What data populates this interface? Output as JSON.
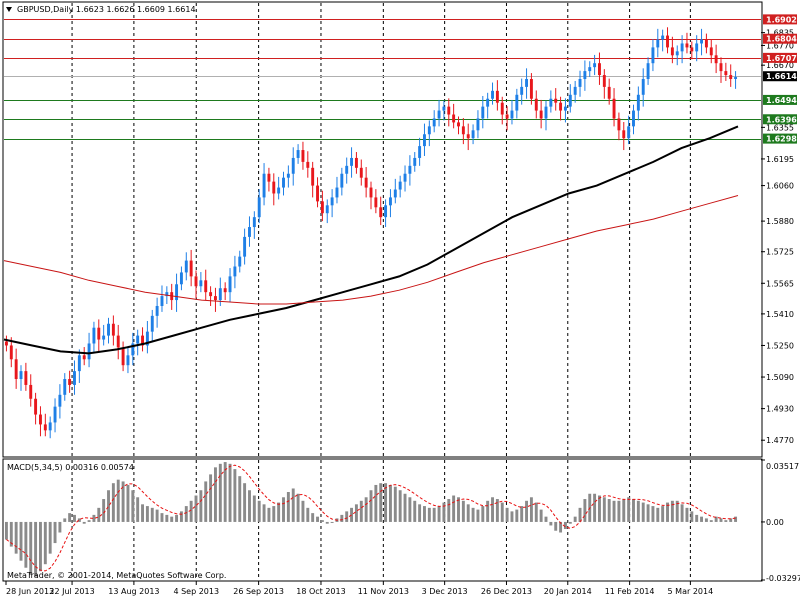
{
  "colors": {
    "background": "#ffffff",
    "bull": "#1e7fe6",
    "bear": "#e8171c",
    "ma_fast": "#000000",
    "ma_slow": "#c81414",
    "hline_resistance": "#d02020",
    "hline_support": "#1e7a1e",
    "hline_current": "#b0b0b0",
    "macd_hist": "#8a8a8a",
    "macd_signal": "#e81010"
  },
  "price_panel": {
    "header": "GBPUSD,Daily  1.6623 1.6626 1.6609 1.6614",
    "collapse_icon": "triangle-down-icon",
    "ylim": [
      1.469,
      1.6985
    ]
  },
  "macd_panel": {
    "header": "MACD(5,34,5) 0.00316 0.00574",
    "ylim": [
      -0.03297,
      0.03517
    ]
  },
  "copyright": "MetaTrader, © 2001-2014, MetaQuotes Software Corp.",
  "chart_data": [
    {
      "type": "candlestick",
      "symbol": "GBPUSD",
      "timeframe": "Daily",
      "y_ticks": [
        "1.6902",
        "1.6835",
        "1.6770",
        "1.6670",
        "1.6614",
        "1.6494",
        "1.6396",
        "1.6355",
        "1.6298",
        "1.6195",
        "1.6060",
        "1.5880",
        "1.5725",
        "1.5565",
        "1.5410",
        "1.5250",
        "1.5090",
        "1.4930",
        "1.4770"
      ],
      "x_ticks": [
        "28 Jun 2013",
        "22 Jul 2013",
        "13 Aug 2013",
        "4 Sep 2013",
        "26 Sep 2013",
        "18 Oct 2013",
        "11 Nov 2013",
        "3 Dec 2013",
        "26 Dec 2013",
        "20 Jan 2014",
        "11 Feb 2014",
        "5 Mar 2014"
      ],
      "horizontal_lines": [
        {
          "value": 1.6902,
          "label": "1.6902",
          "kind": "resistance"
        },
        {
          "value": 1.6804,
          "label": "1.6804",
          "kind": "resistance"
        },
        {
          "value": 1.6707,
          "label": "1.6707",
          "kind": "resistance"
        },
        {
          "value": 1.6614,
          "label": "1.6614",
          "kind": "current"
        },
        {
          "value": 1.6494,
          "label": "1.6494",
          "kind": "support"
        },
        {
          "value": 1.6396,
          "label": "1.6396",
          "kind": "support"
        },
        {
          "value": 1.6298,
          "label": "1.6298",
          "kind": "support"
        }
      ],
      "close_series": [
        1.525,
        1.518,
        1.508,
        1.512,
        1.505,
        1.498,
        1.49,
        1.485,
        1.482,
        1.486,
        1.494,
        1.5,
        1.508,
        1.505,
        1.512,
        1.52,
        1.518,
        1.526,
        1.534,
        1.528,
        1.53,
        1.536,
        1.53,
        1.524,
        1.515,
        1.52,
        1.526,
        1.53,
        1.525,
        1.532,
        1.54,
        1.545,
        1.55,
        1.552,
        1.548,
        1.556,
        1.562,
        1.568,
        1.56,
        1.555,
        1.558,
        1.552,
        1.55,
        1.548,
        1.554,
        1.552,
        1.56,
        1.565,
        1.57,
        1.58,
        1.585,
        1.59,
        1.6,
        1.612,
        1.608,
        1.602,
        1.605,
        1.61,
        1.612,
        1.62,
        1.624,
        1.618,
        1.615,
        1.606,
        1.598,
        1.592,
        1.596,
        1.6,
        1.605,
        1.612,
        1.616,
        1.62,
        1.615,
        1.61,
        1.605,
        1.6,
        1.595,
        1.59,
        1.596,
        1.6,
        1.604,
        1.608,
        1.612,
        1.616,
        1.62,
        1.626,
        1.632,
        1.636,
        1.64,
        1.644,
        1.646,
        1.642,
        1.638,
        1.636,
        1.632,
        1.63,
        1.634,
        1.64,
        1.646,
        1.65,
        1.654,
        1.648,
        1.642,
        1.64,
        1.644,
        1.652,
        1.656,
        1.66,
        1.65,
        1.644,
        1.64,
        1.646,
        1.65,
        1.648,
        1.644,
        1.646,
        1.652,
        1.656,
        1.66,
        1.664,
        1.666,
        1.668,
        1.662,
        1.656,
        1.65,
        1.64,
        1.634,
        1.63,
        1.636,
        1.644,
        1.652,
        1.66,
        1.668,
        1.676,
        1.68,
        1.682,
        1.676,
        1.672,
        1.674,
        1.678,
        1.676,
        1.674,
        1.678,
        1.68,
        1.676,
        1.672,
        1.668,
        1.664,
        1.662,
        1.66,
        1.661
      ],
      "series": [
        {
          "name": "Moving Average (fast)",
          "values": [
            1.528,
            1.525,
            1.522,
            1.521,
            1.523,
            1.526,
            1.53,
            1.534,
            1.538,
            1.541,
            1.544,
            1.548,
            1.552,
            1.556,
            1.56,
            1.566,
            1.574,
            1.582,
            1.59,
            1.596,
            1.602,
            1.606,
            1.612,
            1.618,
            1.625,
            1.63,
            1.636
          ]
        },
        {
          "name": "Moving Average (slow)",
          "values": [
            1.568,
            1.565,
            1.562,
            1.558,
            1.555,
            1.552,
            1.55,
            1.548,
            1.547,
            1.546,
            1.546,
            1.547,
            1.548,
            1.55,
            1.553,
            1.557,
            1.562,
            1.567,
            1.571,
            1.575,
            1.579,
            1.583,
            1.586,
            1.589,
            1.593,
            1.597,
            1.601
          ]
        }
      ]
    },
    {
      "type": "bar",
      "indicator": "MACD",
      "params": [
        5,
        34,
        5
      ],
      "values_label": [
        "0.00316",
        "0.00574"
      ],
      "y_ticks": [
        "0.03517",
        "0.00",
        "-0.03297"
      ],
      "histogram": [
        -0.01,
        -0.014,
        -0.018,
        -0.022,
        -0.026,
        -0.03,
        -0.031,
        -0.028,
        -0.024,
        -0.018,
        -0.012,
        -0.006,
        0.002,
        0.005,
        0.004,
        0.002,
        -0.001,
        0.001,
        0.004,
        0.008,
        0.013,
        0.018,
        0.022,
        0.024,
        0.023,
        0.021,
        0.018,
        0.014,
        0.01,
        0.009,
        0.008,
        0.007,
        0.005,
        0.004,
        0.003,
        0.004,
        0.006,
        0.009,
        0.012,
        0.015,
        0.018,
        0.023,
        0.027,
        0.031,
        0.033,
        0.034,
        0.033,
        0.03,
        0.026,
        0.022,
        0.018,
        0.015,
        0.012,
        0.01,
        0.008,
        0.009,
        0.011,
        0.014,
        0.017,
        0.019,
        0.016,
        0.012,
        0.008,
        0.005,
        0.003,
        0.001,
        -0.001,
        0.0,
        0.002,
        0.004,
        0.006,
        0.008,
        0.01,
        0.012,
        0.014,
        0.018,
        0.021,
        0.022,
        0.022,
        0.021,
        0.02,
        0.018,
        0.016,
        0.014,
        0.012,
        0.01,
        0.009,
        0.008,
        0.008,
        0.009,
        0.011,
        0.013,
        0.015,
        0.014,
        0.012,
        0.01,
        0.008,
        0.007,
        0.009,
        0.012,
        0.014,
        0.013,
        0.011,
        0.008,
        0.006,
        0.007,
        0.009,
        0.012,
        0.014,
        0.011,
        0.007,
        0.003,
        -0.002,
        -0.005,
        -0.006,
        -0.004,
        -0.001,
        0.003,
        0.008,
        0.013,
        0.016,
        0.016,
        0.015,
        0.014,
        0.013,
        0.012,
        0.012,
        0.013,
        0.014,
        0.013,
        0.012,
        0.011,
        0.01,
        0.009,
        0.008,
        0.009,
        0.011,
        0.012,
        0.012,
        0.01,
        0.008,
        0.006,
        0.004,
        0.003,
        0.002,
        0.001,
        0.003,
        0.002,
        0.001,
        0.002,
        0.003
      ]
    }
  ]
}
